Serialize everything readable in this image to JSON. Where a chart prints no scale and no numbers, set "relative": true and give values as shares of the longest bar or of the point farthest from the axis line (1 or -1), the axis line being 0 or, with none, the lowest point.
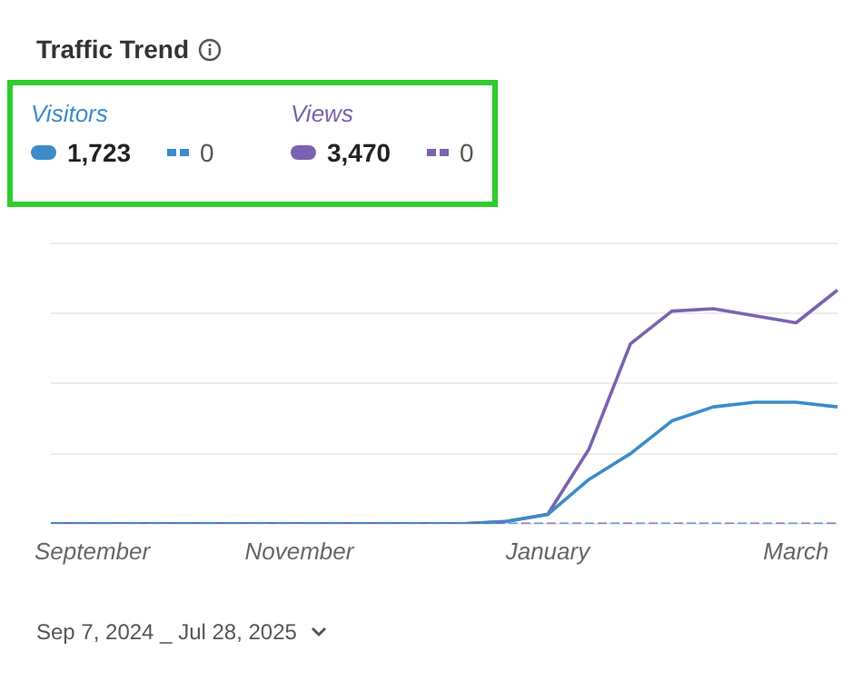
{
  "chart_data": {
    "type": "line",
    "title": "Traffic Trend",
    "relative": true,
    "grid": "y",
    "legend": "top left",
    "marker": "none",
    "categories": [
      null,
      "September",
      null,
      null,
      null,
      null,
      "November",
      null,
      null,
      null,
      null,
      null,
      "January",
      null,
      null,
      null,
      null,
      null,
      "March",
      null
    ],
    "series": [
      {
        "name": "Visitors",
        "color": "#3d8bc9",
        "values": [
          0,
          0,
          0,
          0,
          0,
          0,
          0,
          0,
          0,
          0,
          0,
          0.01,
          0.04,
          0.19,
          0.3,
          0.44,
          0.5,
          0.52,
          0.52,
          0.5
        ]
      },
      {
        "color": "#3d8bc9",
        "line_style": "dashed",
        "values": [
          0,
          0,
          0,
          0,
          0,
          0,
          0,
          0,
          0,
          0,
          0,
          0,
          0,
          0,
          0,
          0,
          0,
          0,
          0,
          0
        ]
      },
      {
        "name": "Views",
        "color": "#7a62b0",
        "values": [
          0,
          0,
          0,
          0,
          0,
          0,
          0,
          0,
          0,
          0,
          0,
          0.01,
          0.04,
          0.32,
          0.77,
          0.91,
          0.92,
          0.89,
          0.86,
          1
        ]
      },
      {
        "color": "#7a62b0",
        "line_style": "dashed",
        "values": [
          0,
          0,
          0,
          0,
          0,
          0,
          0,
          0,
          0,
          0,
          0,
          0,
          0,
          0,
          0,
          0,
          0,
          0,
          0,
          0
        ]
      }
    ],
    "annotations": [
      "1,723",
      "0",
      "3,470",
      "0",
      "Sep 7, 2024 _ Jul 28, 2025"
    ]
  }
}
